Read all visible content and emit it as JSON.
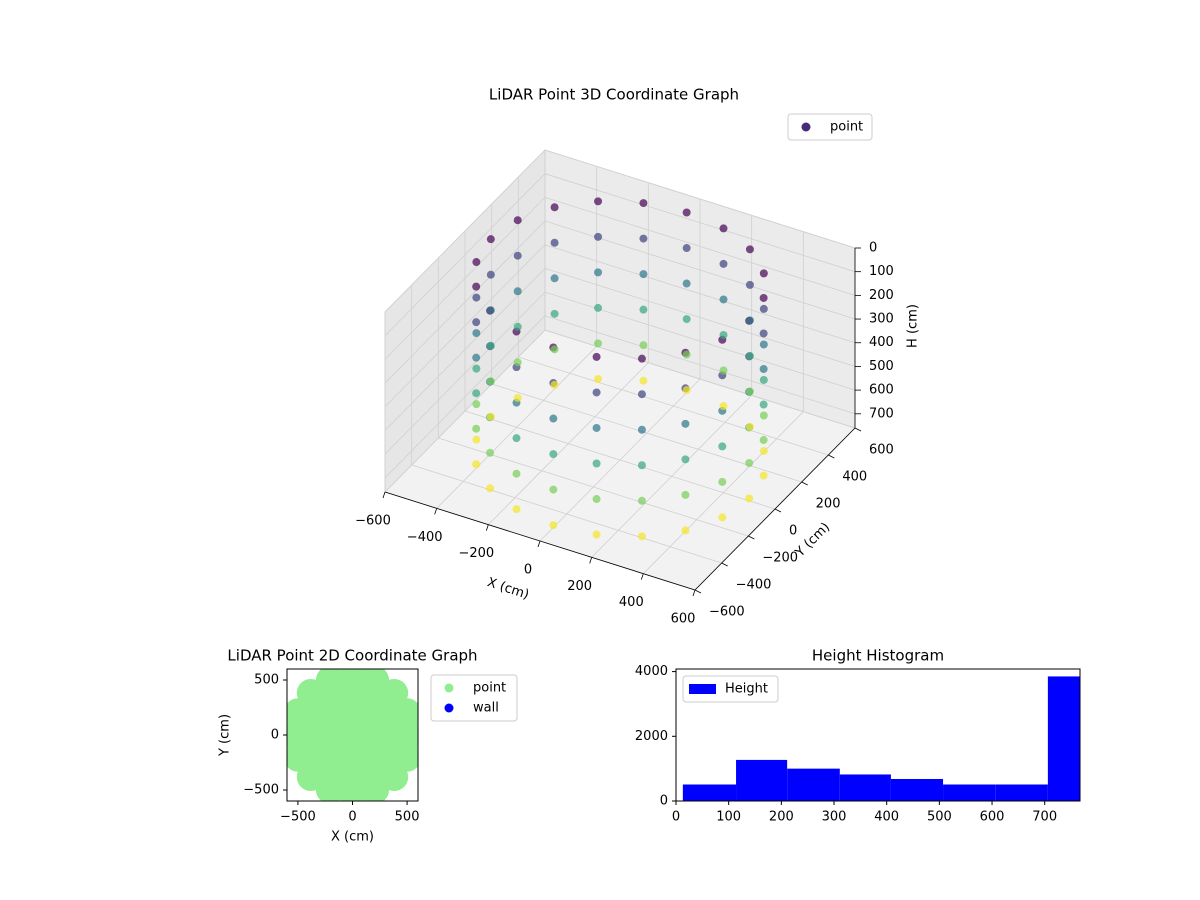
{
  "chart_data": [
    {
      "type": "scatter3d",
      "title": "LiDAR Point 3D Coordinate Graph",
      "xlabel": "X (cm)",
      "ylabel": "Y (cm)",
      "zlabel": "H (cm)",
      "colormap": "viridis",
      "legend": "upper right",
      "series": [
        {
          "name": "point",
          "color": "#472c7a",
          "x": [
            500,
            476,
            405,
            294,
            155,
            0,
            -155,
            -294,
            -405,
            -476,
            -500,
            -476,
            -405,
            -294,
            -155,
            0,
            155,
            294,
            405,
            476,
            500,
            476,
            405,
            294,
            155,
            0,
            -155,
            -294,
            -405,
            -476,
            -500,
            -476,
            -405,
            -294,
            -155,
            0,
            155,
            294,
            405,
            476,
            500,
            476,
            405,
            294,
            155,
            0,
            -155,
            -294,
            -405,
            -476,
            -500,
            -476,
            -405,
            -294,
            -155,
            0,
            155,
            294,
            405,
            476,
            500,
            476,
            405,
            294,
            155,
            0,
            -155,
            -294,
            -405,
            -476,
            -500,
            -476,
            -405,
            -294,
            -155,
            0,
            155,
            294,
            405,
            476,
            500,
            476,
            405,
            294,
            155,
            0,
            -155,
            -294,
            -405,
            -476,
            -500,
            -476,
            -405,
            -294,
            -155,
            0,
            155,
            294,
            405,
            476,
            500,
            476,
            405,
            294,
            155,
            0,
            -155,
            -294,
            -405,
            -476,
            -500,
            -476,
            -405,
            -294,
            -155,
            0,
            155,
            294,
            405,
            476
          ],
          "y": [
            0,
            155,
            294,
            405,
            476,
            500,
            476,
            405,
            294,
            155,
            0,
            -155,
            -294,
            -405,
            -476,
            -500,
            -476,
            -405,
            -294,
            -155,
            0,
            155,
            294,
            405,
            476,
            500,
            476,
            405,
            294,
            155,
            0,
            -155,
            -294,
            -405,
            -476,
            -500,
            -476,
            -405,
            -294,
            -155,
            0,
            155,
            294,
            405,
            476,
            500,
            476,
            405,
            294,
            155,
            0,
            -155,
            -294,
            -405,
            -476,
            -500,
            -476,
            -405,
            -294,
            -155,
            0,
            155,
            294,
            405,
            476,
            500,
            476,
            405,
            294,
            155,
            0,
            -155,
            -294,
            -405,
            -476,
            -500,
            -476,
            -405,
            -294,
            -155,
            0,
            155,
            294,
            405,
            476,
            500,
            476,
            405,
            294,
            155,
            0,
            -155,
            -294,
            -405,
            -476,
            -500,
            -476,
            -405,
            -294,
            -155,
            0,
            155,
            294,
            405,
            476,
            500,
            476,
            405,
            294,
            155,
            0,
            -155,
            -294,
            -405,
            -476,
            -500,
            -476,
            -405,
            -294,
            -155
          ],
          "h": [
            0,
            0,
            0,
            0,
            0,
            0,
            0,
            0,
            0,
            0,
            0,
            0,
            0,
            0,
            0,
            0,
            0,
            0,
            0,
            0,
            150,
            150,
            150,
            150,
            150,
            150,
            150,
            150,
            150,
            150,
            150,
            150,
            150,
            150,
            150,
            150,
            150,
            150,
            150,
            150,
            300,
            300,
            300,
            300,
            300,
            300,
            300,
            300,
            300,
            300,
            300,
            300,
            300,
            300,
            300,
            300,
            300,
            300,
            300,
            300,
            450,
            450,
            450,
            450,
            450,
            450,
            450,
            450,
            450,
            450,
            450,
            450,
            450,
            450,
            450,
            450,
            450,
            450,
            450,
            450,
            600,
            600,
            600,
            600,
            600,
            600,
            600,
            600,
            600,
            600,
            600,
            600,
            600,
            600,
            600,
            600,
            600,
            600,
            600,
            600,
            750,
            750,
            750,
            750,
            750,
            750,
            750,
            750,
            750,
            750,
            750,
            750,
            750,
            750,
            750,
            750,
            750,
            750,
            750,
            750
          ]
        }
      ],
      "xlim": [
        -600,
        600
      ],
      "ylim": [
        -600,
        600
      ],
      "zlim": [
        760,
        0
      ],
      "xticks": [
        {
          "value": -600,
          "label": "−600"
        },
        {
          "value": -400,
          "label": "−400"
        },
        {
          "value": -200,
          "label": "−200"
        },
        0,
        200,
        400,
        600
      ],
      "yticks": [
        {
          "value": -600,
          "label": "−600"
        },
        {
          "value": -400,
          "label": "−400"
        },
        {
          "value": -200,
          "label": "−200"
        },
        0,
        200,
        400,
        600
      ],
      "zticks": [
        0,
        100,
        200,
        300,
        400,
        500,
        600,
        700
      ],
      "grid": true
    },
    {
      "type": "scatter",
      "title": "LiDAR Point 2D Coordinate Graph",
      "xlabel": "X (cm)",
      "ylabel": "Y (cm)",
      "legend": "outside right",
      "series": [
        {
          "name": "point",
          "color": "#90ee90",
          "x": [
            0,
            180,
            127,
            0,
            -127,
            -180,
            -127,
            0,
            127,
            380,
            329,
            190,
            0,
            -190,
            -329,
            -380,
            -329,
            -190,
            0,
            190,
            329,
            540,
            499,
            382,
            207,
            0,
            -207,
            -382,
            -499,
            -540,
            -499,
            -382,
            -207,
            0,
            207,
            382,
            499
          ],
          "y": [
            0,
            0,
            127,
            180,
            127,
            0,
            -127,
            -180,
            -127,
            0,
            190,
            329,
            380,
            329,
            190,
            0,
            -190,
            -329,
            -380,
            -329,
            -190,
            0,
            207,
            382,
            499,
            540,
            499,
            382,
            207,
            0,
            -207,
            -382,
            -499,
            -540,
            -499,
            -382,
            -207
          ]
        },
        {
          "name": "wall",
          "color": "#0000ff",
          "x": [],
          "y": []
        }
      ],
      "xlim": [
        -600,
        600
      ],
      "ylim": [
        -600,
        600
      ],
      "xticks": [
        {
          "value": -500,
          "label": "−500"
        },
        0,
        500
      ],
      "yticks": [
        {
          "value": -500,
          "label": "−500"
        },
        0,
        500
      ]
    },
    {
      "type": "histogram",
      "title": "Height Histogram",
      "legend": "upper left",
      "series": [
        {
          "name": "Height",
          "color": "#0000ff",
          "values": [
            510,
            1270,
            1000,
            820,
            680,
            510,
            510,
            3850
          ]
        }
      ],
      "bins": [
        13,
        114,
        211,
        311,
        408,
        507,
        607,
        706,
        767
      ],
      "xlim": [
        0,
        767
      ],
      "ylim": [
        0,
        4080
      ],
      "xticks": [
        0,
        100,
        200,
        300,
        400,
        500,
        600,
        700
      ],
      "yticks": [
        0,
        2000,
        4000
      ]
    }
  ]
}
